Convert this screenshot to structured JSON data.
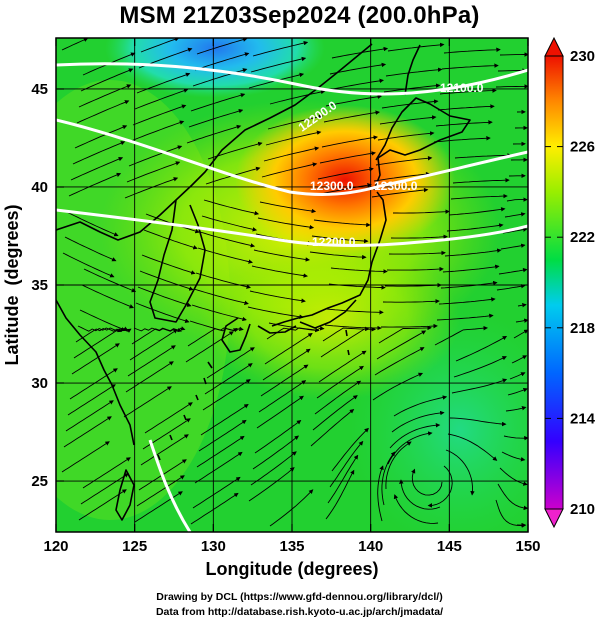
{
  "title": "MSM 21Z03Sep2024 (200.0hPa)",
  "xlabel": "Longitude (degrees)",
  "ylabel": "Latitude  (degrees)",
  "x_ticks": [
    120,
    125,
    130,
    135,
    140,
    145,
    150
  ],
  "y_ticks": [
    25,
    30,
    35,
    40,
    45
  ],
  "xlim": [
    120,
    150
  ],
  "ylim": [
    22.4,
    47.6
  ],
  "colorbar": {
    "ticks": [
      210,
      214,
      218,
      222,
      226,
      230
    ],
    "range": [
      210,
      230
    ]
  },
  "contours": [
    {
      "label": "12100.0"
    },
    {
      "label": "12200.0"
    },
    {
      "label": "12300.0"
    },
    {
      "label": "12300.0"
    },
    {
      "label": "12200.0"
    }
  ],
  "credits": {
    "line1": "Drawing by DCL (https://www.gfd-dennou.org/library/dcl/)",
    "line2": "Data from http://database.rish.kyoto-u.ac.jp/arch/jmadata/"
  },
  "colors": {
    "field_background": "#22cc22",
    "warm_core": "#ee2200",
    "cool_area": "#22aaee",
    "streamline": "#000000",
    "contour": "#ffffff",
    "coast": "#000000"
  }
}
